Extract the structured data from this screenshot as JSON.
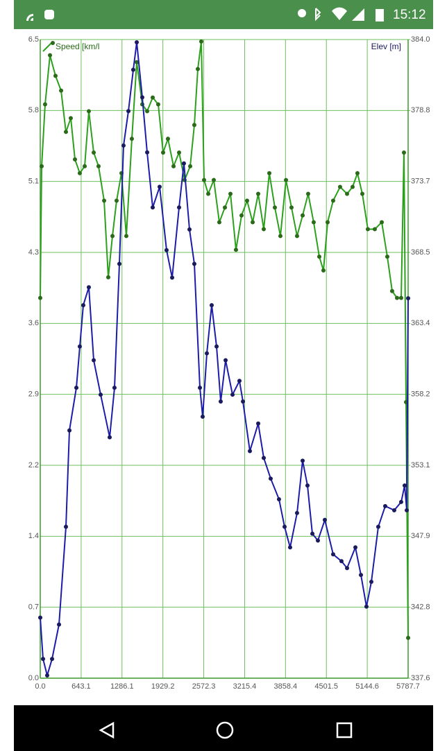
{
  "status_bar": {
    "time": "15:12"
  },
  "chart_data": {
    "type": "line",
    "xlim": [
      0,
      5787.7
    ],
    "xticks": [
      {
        "value": 0,
        "label": "0.0"
      },
      643.1,
      1286.1,
      1929.2,
      2572.3,
      3215.4,
      3858.4,
      4501.5,
      5144.6,
      5787.7
    ],
    "ylim": [
      0,
      6.5
    ],
    "yticks": [
      {
        "value": 0,
        "label": "0.0"
      },
      {
        "value": 0.7222,
        "label": "0.7"
      },
      {
        "value": 1.4444,
        "label": "1.4"
      },
      {
        "value": 2.1667,
        "label": "2.2"
      },
      {
        "value": 2.8889,
        "label": "2.9"
      },
      {
        "value": 3.6111,
        "label": "3.6"
      },
      {
        "value": 4.3333,
        "label": "4.3"
      },
      {
        "value": 5.0556,
        "label": "5.1"
      },
      {
        "value": 5.7778,
        "label": "5.8"
      },
      6.5
    ],
    "y2lim": [
      337.6,
      384
    ],
    "y2ticks": [
      337.6,
      {
        "value": 342.756,
        "label": "342.8"
      },
      {
        "value": 347.911,
        "label": "347.9"
      },
      {
        "value": 353.067,
        "label": "353.1"
      },
      {
        "value": 358.222,
        "label": "358.2"
      },
      {
        "value": 363.378,
        "label": "363.4"
      },
      {
        "value": 368.533,
        "label": "368.5"
      },
      {
        "value": 373.689,
        "label": "373.7"
      },
      {
        "value": 378.844,
        "label": "378.8"
      },
      {
        "value": 384,
        "label": "384.0"
      }
    ],
    "grid": true,
    "series": [
      {
        "name": "Speed [km/l",
        "color": "#2ca01c",
        "marker_color": "#2a6a18",
        "x": [
          0,
          22,
          76,
          153,
          240,
          328,
          404,
          480,
          546,
          622,
          699,
          764,
          841,
          917,
          1005,
          1070,
          1136,
          1201,
          1278,
          1354,
          1441,
          1518,
          1605,
          1682,
          1769,
          1856,
          1933,
          2009,
          2097,
          2184,
          2271,
          2359,
          2424,
          2479,
          2533,
          2577,
          2643,
          2730,
          2817,
          2905,
          2992,
          3079,
          3167,
          3254,
          3342,
          3429,
          3516,
          3604,
          3691,
          3778,
          3866,
          3953,
          4040,
          4128,
          4215,
          4302,
          4390,
          4455,
          4521,
          4608,
          4717,
          4827,
          4914,
          4990,
          5067,
          5154,
          5263,
          5373,
          5460,
          5536,
          5613,
          5678,
          5722,
          5755,
          5788
        ],
        "values": [
          3.87,
          5.21,
          5.84,
          6.34,
          6.13,
          5.98,
          5.56,
          5.7,
          5.28,
          5.14,
          5.21,
          5.77,
          5.35,
          5.21,
          4.86,
          4.08,
          4.5,
          4.86,
          5.14,
          4.5,
          5.49,
          6.27,
          5.84,
          5.77,
          5.91,
          5.84,
          5.35,
          5.49,
          5.21,
          5.35,
          5.07,
          5.21,
          5.63,
          6.2,
          6.48,
          5.07,
          4.93,
          5.07,
          4.64,
          4.79,
          4.93,
          4.36,
          4.71,
          4.86,
          4.64,
          4.93,
          4.57,
          5.14,
          4.79,
          4.5,
          5.07,
          4.79,
          4.5,
          4.71,
          4.93,
          4.64,
          4.29,
          4.15,
          4.64,
          4.86,
          5.0,
          4.93,
          5.0,
          5.14,
          4.93,
          4.57,
          4.57,
          4.64,
          4.29,
          3.94,
          3.87,
          3.87,
          5.35,
          2.81,
          0.41
        ]
      },
      {
        "name": "Elev [m]",
        "axis": "y2",
        "color": "#1c1ca8",
        "marker_color": "#1a1a5e",
        "x": [
          0,
          44,
          109,
          186,
          295,
          404,
          459,
          568,
          622,
          677,
          764,
          841,
          950,
          1092,
          1168,
          1245,
          1310,
          1387,
          1463,
          1518,
          1605,
          1682,
          1769,
          1878,
          1987,
          2075,
          2184,
          2260,
          2348,
          2424,
          2512,
          2555,
          2621,
          2697,
          2774,
          2839,
          2916,
          3025,
          3134,
          3189,
          3298,
          3429,
          3516,
          3625,
          3756,
          3844,
          3931,
          4040,
          4128,
          4204,
          4281,
          4368,
          4477,
          4608,
          4739,
          4827,
          4958,
          5045,
          5132,
          5209,
          5318,
          5427,
          5569,
          5678,
          5733,
          5766,
          5788
        ],
        "values": [
          342.0,
          339.0,
          337.8,
          339.0,
          341.5,
          348.6,
          355.6,
          358.7,
          361.7,
          364.7,
          366.0,
          360.7,
          358.2,
          355.1,
          358.7,
          367.7,
          376.3,
          378.8,
          381.8,
          383.8,
          379.8,
          375.8,
          371.8,
          373.3,
          368.7,
          366.7,
          371.8,
          375.0,
          370.2,
          367.7,
          358.7,
          356.6,
          361.2,
          364.7,
          361.7,
          357.7,
          360.7,
          358.2,
          359.2,
          357.7,
          354.1,
          356.1,
          353.6,
          352.1,
          350.6,
          348.6,
          347.1,
          349.6,
          353.4,
          351.6,
          348.1,
          347.6,
          349.1,
          346.6,
          346.1,
          345.6,
          347.1,
          345.1,
          342.8,
          344.6,
          348.6,
          350.1,
          349.8,
          350.4,
          351.6,
          349.8,
          365.2
        ]
      }
    ]
  }
}
